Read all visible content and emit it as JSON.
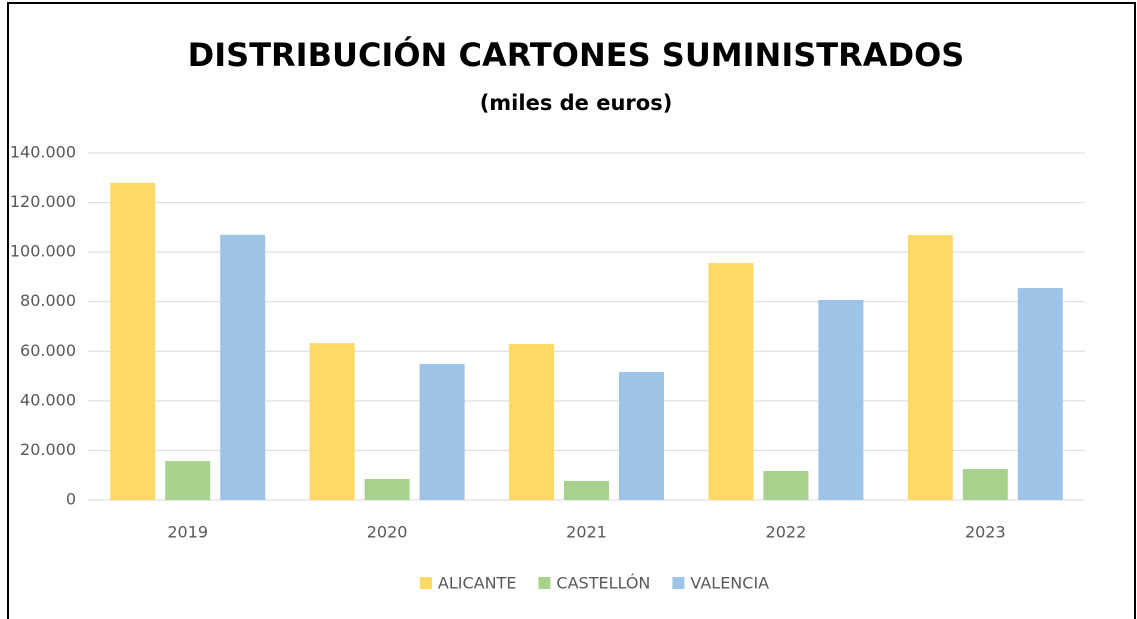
{
  "chart_data": {
    "type": "bar",
    "title": "DISTRIBUCIÓN CARTONES SUMINISTRADOS",
    "subtitle": "(miles de euros)",
    "categories": [
      "2019",
      "2020",
      "2021",
      "2022",
      "2023"
    ],
    "series": [
      {
        "name": "ALICANTE",
        "color": "#ffd966",
        "values": [
          128000,
          63300,
          62900,
          95600,
          106900
        ]
      },
      {
        "name": "CASTELLÓN",
        "color": "#a9d18e",
        "values": [
          15700,
          8500,
          7700,
          11700,
          12500
        ]
      },
      {
        "name": "VALENCIA",
        "color": "#9dc3e6",
        "values": [
          107000,
          54900,
          51600,
          80700,
          85500
        ]
      }
    ],
    "ylim": [
      0,
      140000
    ],
    "yticks": [
      0,
      {
        "value": 20000,
        "label": "20.000"
      },
      {
        "value": 40000,
        "label": "40.000"
      },
      {
        "value": 60000,
        "label": "60.000"
      },
      {
        "value": 80000,
        "label": "80.000"
      },
      {
        "value": 100000,
        "label": "100.000"
      },
      {
        "value": 120000,
        "label": "120.000"
      },
      {
        "value": 140000,
        "label": "140.000"
      }
    ],
    "grid": true,
    "legend": "bottom"
  }
}
